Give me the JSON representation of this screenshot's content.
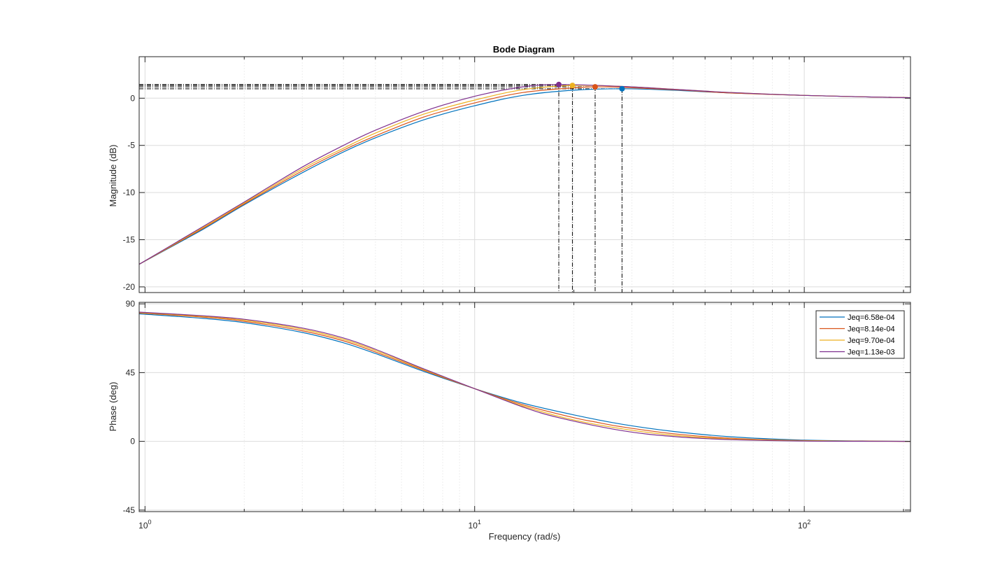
{
  "chart_data": {
    "type": "line",
    "title": "Bode Diagram",
    "xlabel": "Frequency  (rad/s)",
    "x_scale": "log",
    "xlim": [
      0.96,
      210
    ],
    "x_ticks": [
      {
        "value": 1,
        "base": "10",
        "exp": "0"
      },
      {
        "value": 10,
        "base": "10",
        "exp": "1"
      },
      {
        "value": 100,
        "base": "10",
        "exp": "2"
      }
    ],
    "grid": true,
    "legend_location": "top-right of phase plot",
    "colors": [
      "#0072BD",
      "#D95319",
      "#EDB120",
      "#7E2F8E"
    ],
    "legend": [
      "Jeq=6.58e-04",
      "Jeq=8.14e-04",
      "Jeq=9.70e-04",
      "Jeq=1.13e-03"
    ],
    "peaks": [
      {
        "freq": 28.0,
        "mag": 1.0
      },
      {
        "freq": 23.2,
        "mag": 1.2
      },
      {
        "freq": 19.8,
        "mag": 1.35
      },
      {
        "freq": 18.0,
        "mag": 1.45
      }
    ],
    "magnitude": {
      "ylabel": "Magnitude (dB)",
      "ylim": [
        -20.6,
        4.4
      ],
      "yticks": [
        0,
        -5,
        -10,
        -15,
        -20
      ],
      "ytick_labels": [
        "0",
        "-5",
        "-10",
        "-15",
        "-20"
      ]
    },
    "phase": {
      "ylabel": "Phase (deg)",
      "ylim": [
        -46,
        91
      ],
      "yticks": [
        90,
        45,
        0,
        -45
      ],
      "ytick_labels": [
        "90",
        "45",
        "0",
        "-45"
      ]
    },
    "series": [
      {
        "name": "Jeq=6.58e-04",
        "color": "#0072BD",
        "x": [
          0.96,
          1.5,
          2,
          3,
          4,
          5,
          7,
          10,
          14,
          20,
          28,
          40,
          60,
          100,
          150,
          210
        ],
        "mag": [
          -17.6,
          -13.9,
          -11.3,
          -7.9,
          -5.7,
          -4.2,
          -2.3,
          -0.8,
          0.3,
          0.85,
          1.0,
          0.85,
          0.55,
          0.3,
          0.15,
          0.05
        ],
        "phase": [
          83.5,
          80.5,
          77.7,
          71.3,
          64.5,
          57.5,
          45.8,
          34.5,
          25.0,
          17.3,
          11.2,
          6.5,
          3.0,
          0.8,
          0.3,
          0.0
        ]
      },
      {
        "name": "Jeq=8.14e-04",
        "color": "#D95319",
        "x": [
          0.96,
          1.5,
          2,
          3,
          4,
          5,
          7,
          10,
          14,
          20,
          23.2,
          28,
          40,
          60,
          100,
          150,
          210
        ],
        "mag": [
          -17.6,
          -13.8,
          -11.2,
          -7.7,
          -5.5,
          -4.0,
          -2.0,
          -0.5,
          0.6,
          1.1,
          1.2,
          1.15,
          0.9,
          0.55,
          0.3,
          0.15,
          0.05
        ],
        "phase": [
          84.0,
          81.3,
          78.6,
          72.4,
          65.8,
          58.5,
          46.5,
          34.5,
          24.0,
          15.5,
          12.7,
          9.5,
          5.0,
          2.0,
          0.5,
          0.2,
          0.0
        ]
      },
      {
        "name": "Jeq=9.70e-04",
        "color": "#EDB120",
        "x": [
          0.96,
          1.5,
          2,
          3,
          4,
          5,
          7,
          10,
          14,
          19.8,
          28,
          40,
          60,
          100,
          150,
          210
        ],
        "mag": [
          -17.6,
          -13.7,
          -11.1,
          -7.5,
          -5.3,
          -3.7,
          -1.7,
          -0.2,
          0.9,
          1.35,
          1.25,
          0.95,
          0.6,
          0.3,
          0.15,
          0.05
        ],
        "phase": [
          84.3,
          81.8,
          79.3,
          73.4,
          66.8,
          59.5,
          47.0,
          34.5,
          23.2,
          14.2,
          8.2,
          4.0,
          1.5,
          0.4,
          0.1,
          0.0
        ]
      },
      {
        "name": "Jeq=1.13e-03",
        "color": "#7E2F8E",
        "x": [
          0.96,
          1.5,
          2,
          3,
          4,
          5,
          7,
          10,
          14,
          18,
          28,
          40,
          60,
          100,
          150,
          210
        ],
        "mag": [
          -17.6,
          -13.6,
          -11.0,
          -7.3,
          -5.0,
          -3.4,
          -1.4,
          0.2,
          1.2,
          1.45,
          1.25,
          0.95,
          0.6,
          0.3,
          0.15,
          0.05
        ],
        "phase": [
          84.6,
          82.2,
          79.9,
          74.2,
          67.7,
          60.3,
          47.5,
          34.5,
          22.5,
          15.5,
          7.0,
          3.2,
          1.1,
          0.2,
          0.05,
          0.0
        ]
      }
    ]
  }
}
